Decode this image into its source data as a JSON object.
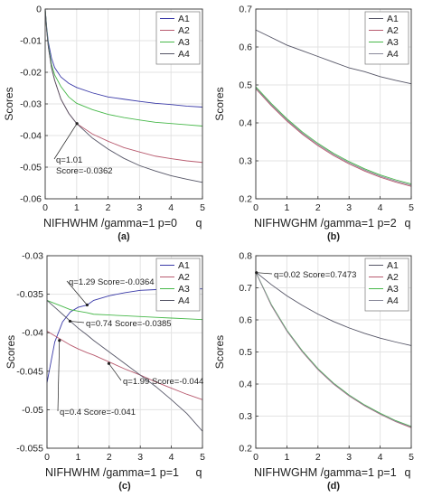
{
  "chart_data": [
    {
      "panel_label": "(a)",
      "type": "line",
      "xlabel": "NIFHWHM /gamma=1 p=0",
      "x_var": "q",
      "ylabel": "Scores",
      "xlim": [
        0,
        5
      ],
      "ylim": [
        -0.06,
        0
      ],
      "xticks": [
        0,
        1,
        2,
        3,
        4,
        5
      ],
      "yticks": [
        0,
        -0.01,
        -0.02,
        -0.03,
        -0.04,
        -0.05,
        -0.06
      ],
      "ytick_labels": [
        "0",
        "-0.01",
        "-0.02",
        "-0.03",
        "-0.04",
        "-0.05",
        "-0.06"
      ],
      "grid": true,
      "legend": {
        "position": "top-right",
        "entries": [
          "A1",
          "A2",
          "A3",
          "A4"
        ]
      },
      "x": [
        0,
        0.05,
        0.1,
        0.2,
        0.3,
        0.5,
        0.75,
        1,
        1.5,
        2,
        2.5,
        3,
        3.5,
        4,
        4.5,
        5
      ],
      "series": [
        {
          "name": "A1",
          "color": "#3a3aa8",
          "values": [
            0,
            -0.006,
            -0.0105,
            -0.0155,
            -0.0185,
            -0.0215,
            -0.0235,
            -0.0248,
            -0.0265,
            -0.0278,
            -0.0285,
            -0.0292,
            -0.0298,
            -0.0302,
            -0.0307,
            -0.031
          ]
        },
        {
          "name": "A2",
          "color": "#b85a6e",
          "values": [
            0,
            -0.007,
            -0.012,
            -0.0185,
            -0.0225,
            -0.0285,
            -0.033,
            -0.0362,
            -0.0395,
            -0.0418,
            -0.0438,
            -0.0452,
            -0.0465,
            -0.0473,
            -0.048,
            -0.0485
          ]
        },
        {
          "name": "A3",
          "color": "#47b84a",
          "values": [
            0,
            -0.0065,
            -0.0115,
            -0.0175,
            -0.0208,
            -0.0245,
            -0.0278,
            -0.0298,
            -0.0318,
            -0.0333,
            -0.0343,
            -0.0351,
            -0.0358,
            -0.0362,
            -0.0366,
            -0.037
          ]
        },
        {
          "name": "A4",
          "color": "#555566",
          "values": [
            0,
            -0.007,
            -0.012,
            -0.0185,
            -0.0225,
            -0.0285,
            -0.033,
            -0.0362,
            -0.0408,
            -0.0443,
            -0.0472,
            -0.0495,
            -0.0512,
            -0.0527,
            -0.0538,
            -0.0548
          ]
        }
      ],
      "annotations": [
        {
          "lines": [
            "q=1.01",
            "Score=-0.0362"
          ],
          "point": [
            1.01,
            -0.0362
          ]
        }
      ]
    },
    {
      "panel_label": "(b)",
      "type": "line",
      "xlabel": "NIFHWGHM /gamma=1 p=2",
      "x_var": "q",
      "ylabel": "Scores",
      "xlim": [
        0,
        5
      ],
      "ylim": [
        0.2,
        0.7
      ],
      "xticks": [
        0,
        1,
        2,
        3,
        4,
        5
      ],
      "yticks": [
        0.7,
        0.6,
        0.5,
        0.4,
        0.3,
        0.2
      ],
      "ytick_labels": [
        "0.7",
        "0.6",
        "0.5",
        "0.4",
        "0.3",
        "0.2"
      ],
      "grid": true,
      "legend": {
        "position": "top-right",
        "entries": [
          "A1",
          "A2",
          "A3",
          "A4"
        ]
      },
      "x": [
        0,
        0.5,
        1,
        1.5,
        2,
        2.5,
        3,
        3.5,
        4,
        4.5,
        5
      ],
      "series": [
        {
          "name": "A1",
          "color": "#555566",
          "values": [
            0.645,
            0.625,
            0.605,
            0.59,
            0.575,
            0.56,
            0.545,
            0.535,
            0.522,
            0.512,
            0.503
          ]
        },
        {
          "name": "A2",
          "color": "#b85a6e",
          "values": [
            0.49,
            0.445,
            0.405,
            0.37,
            0.34,
            0.314,
            0.292,
            0.273,
            0.257,
            0.244,
            0.233
          ]
        },
        {
          "name": "A3",
          "color": "#47b84a",
          "values": [
            0.495,
            0.451,
            0.411,
            0.376,
            0.346,
            0.32,
            0.298,
            0.279,
            0.263,
            0.25,
            0.239
          ]
        },
        {
          "name": "A4",
          "color": "#8a8a9a",
          "values": [
            0.492,
            0.448,
            0.408,
            0.373,
            0.343,
            0.317,
            0.295,
            0.276,
            0.26,
            0.247,
            0.236
          ]
        }
      ]
    },
    {
      "panel_label": "(c)",
      "type": "line",
      "xlabel": "NIFHWHM /gamma=1 p=1",
      "x_var": "q",
      "ylabel": "Scores",
      "xlim": [
        0,
        5
      ],
      "ylim": [
        -0.055,
        -0.03
      ],
      "xticks": [
        0,
        1,
        2,
        3,
        4,
        5
      ],
      "yticks": [
        -0.03,
        -0.035,
        -0.04,
        -0.045,
        -0.05,
        -0.055
      ],
      "ytick_labels": [
        "-0.03",
        "-0.035",
        "-0.04",
        "-0.045",
        "-0.05",
        "-0.055"
      ],
      "grid": true,
      "legend": {
        "position": "top-right",
        "entries": [
          "A1",
          "A2",
          "A3",
          "A4"
        ]
      },
      "x": [
        0,
        0.25,
        0.5,
        0.75,
        1,
        1.29,
        1.5,
        2,
        2.5,
        3,
        3.5,
        4,
        4.5,
        5
      ],
      "series": [
        {
          "name": "A1",
          "color": "#3a3aa8",
          "values": [
            -0.0465,
            -0.0412,
            -0.0386,
            -0.0373,
            -0.0367,
            -0.0364,
            -0.0358,
            -0.0352,
            -0.0348,
            -0.0345,
            -0.0344,
            -0.0343,
            -0.0343,
            -0.0343
          ]
        },
        {
          "name": "A2",
          "color": "#b85a6e",
          "values": [
            -0.0398,
            -0.0404,
            -0.041,
            -0.0416,
            -0.0421,
            -0.0426,
            -0.0429,
            -0.0438,
            -0.0447,
            -0.0455,
            -0.0464,
            -0.0472,
            -0.048,
            -0.0487
          ]
        },
        {
          "name": "A3",
          "color": "#47b84a",
          "values": [
            -0.0358,
            -0.0362,
            -0.0366,
            -0.037,
            -0.0372,
            -0.0374,
            -0.0376,
            -0.0377,
            -0.0378,
            -0.0379,
            -0.038,
            -0.0381,
            -0.0382,
            -0.0383
          ]
        },
        {
          "name": "A4",
          "color": "#555566",
          "values": [
            -0.0358,
            -0.0367,
            -0.0376,
            -0.0385,
            -0.0394,
            -0.0403,
            -0.041,
            -0.0425,
            -0.044,
            -0.0455,
            -0.047,
            -0.0487,
            -0.0505,
            -0.0528
          ]
        }
      ],
      "annotations": [
        {
          "lines": [
            "q=1.29 Score=-0.0364"
          ],
          "point": [
            1.29,
            -0.0364
          ]
        },
        {
          "lines": [
            "q=0.74 Score=-0.0385"
          ],
          "point": [
            0.74,
            -0.0385
          ]
        },
        {
          "lines": [
            "q=1.99 Score=-0.044"
          ],
          "point": [
            1.99,
            -0.044
          ]
        },
        {
          "lines": [
            "q=0.4 Score=-0.041"
          ],
          "point": [
            0.4,
            -0.041
          ]
        }
      ]
    },
    {
      "panel_label": "(d)",
      "type": "line",
      "xlabel": "NIFHWGHM /gamma=1 p=1",
      "x_var": "q",
      "ylabel": "Scores",
      "xlim": [
        0,
        5
      ],
      "ylim": [
        0.2,
        0.8
      ],
      "xticks": [
        0,
        1,
        2,
        3,
        4,
        5
      ],
      "yticks": [
        0.8,
        0.7,
        0.6,
        0.5,
        0.4,
        0.3,
        0.2
      ],
      "ytick_labels": [
        "0.8",
        "0.7",
        "0.6",
        "0.5",
        "0.4",
        "0.3",
        "0.2"
      ],
      "grid": true,
      "legend": {
        "position": "top-right",
        "entries": [
          "A1",
          "A2",
          "A3",
          "A4"
        ]
      },
      "x": [
        0,
        0.02,
        0.5,
        1,
        1.5,
        2,
        2.5,
        3,
        3.5,
        4,
        4.5,
        5
      ],
      "series": [
        {
          "name": "A1",
          "color": "#555566",
          "values": [
            0.75,
            0.7473,
            0.71,
            0.675,
            0.645,
            0.618,
            0.595,
            0.575,
            0.558,
            0.543,
            0.531,
            0.52
          ]
        },
        {
          "name": "A2",
          "color": "#b85a6e",
          "values": [
            0.75,
            0.745,
            0.645,
            0.565,
            0.5,
            0.445,
            0.4,
            0.363,
            0.332,
            0.306,
            0.283,
            0.264
          ]
        },
        {
          "name": "A3",
          "color": "#47b84a",
          "values": [
            0.75,
            0.745,
            0.648,
            0.568,
            0.503,
            0.448,
            0.403,
            0.366,
            0.335,
            0.309,
            0.286,
            0.268
          ]
        },
        {
          "name": "A4",
          "color": "#8a8a9a",
          "values": [
            0.75,
            0.745,
            0.646,
            0.566,
            0.501,
            0.446,
            0.401,
            0.364,
            0.333,
            0.307,
            0.284,
            0.266
          ]
        }
      ],
      "annotations": [
        {
          "lines": [
            "q=0.02 Score=0.7473"
          ],
          "point": [
            0.02,
            0.7473
          ]
        }
      ]
    }
  ]
}
